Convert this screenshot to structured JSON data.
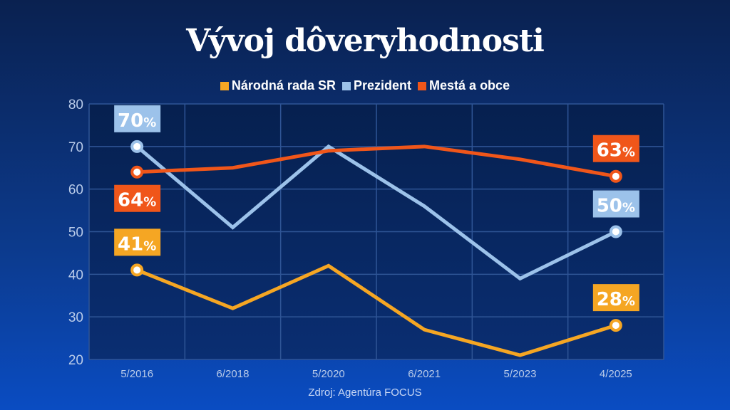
{
  "chart_data": {
    "type": "line",
    "title": "Vývoj dôveryhodnosti",
    "categories": [
      "5/2016",
      "6/2018",
      "5/2020",
      "6/2021",
      "5/2023",
      "4/2025"
    ],
    "ylim": [
      20,
      80
    ],
    "yticks": [
      20,
      30,
      40,
      50,
      60,
      70,
      80
    ],
    "grid": true,
    "legend_position": "top",
    "series": [
      {
        "name": "Národná rada SR",
        "color": "#f5a623",
        "values": [
          41,
          32,
          42,
          27,
          21,
          28
        ]
      },
      {
        "name": "Prezident",
        "color": "#9cc2ea",
        "values": [
          70,
          51,
          70,
          56,
          39,
          50
        ]
      },
      {
        "name": "Mestá a obce",
        "color": "#f0561a",
        "values": [
          64,
          65,
          69,
          70,
          67,
          63
        ]
      }
    ],
    "annotations": [
      {
        "series": 1,
        "index": 0,
        "text": "70",
        "unit": "%",
        "position": "above"
      },
      {
        "series": 2,
        "index": 0,
        "text": "64",
        "unit": "%",
        "position": "below"
      },
      {
        "series": 0,
        "index": 0,
        "text": "41",
        "unit": "%",
        "position": "above"
      },
      {
        "series": 2,
        "index": 5,
        "text": "63",
        "unit": "%",
        "position": "above"
      },
      {
        "series": 1,
        "index": 5,
        "text": "50",
        "unit": "%",
        "position": "above"
      },
      {
        "series": 0,
        "index": 5,
        "text": "28",
        "unit": "%",
        "position": "above"
      }
    ]
  },
  "source": "Zdroj: Agentúra FOCUS"
}
